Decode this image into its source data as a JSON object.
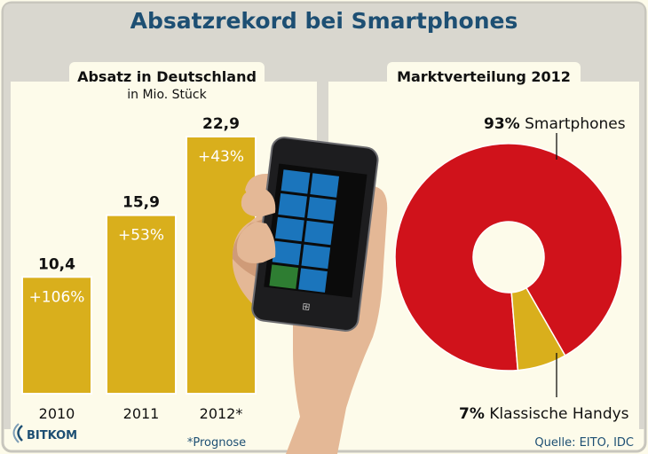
{
  "title": "Absatzrekord bei Smartphones",
  "colors": {
    "title": "#1d4f73",
    "bar": "#d9af1c",
    "bar_border": "#ffffff",
    "donut_main": "#d0121b",
    "donut_minor": "#d9af1c",
    "frame": "#c8c6bd",
    "band": "#d8d6ce",
    "panel": "#fdfbea",
    "footer": "#1d4f73"
  },
  "chart_data": [
    {
      "type": "bar",
      "title": "Absatz in Deutschland",
      "subtitle": "in Mio. Stück",
      "categories": [
        "2010",
        "2011",
        "2012*"
      ],
      "values": [
        10.4,
        15.9,
        22.9
      ],
      "value_labels": [
        "10,4",
        "15,9",
        "22,9"
      ],
      "change_labels": [
        "+106%",
        "+53%",
        "+43%"
      ],
      "xlabel": "",
      "ylabel": "",
      "ylim": [
        0,
        22.9
      ],
      "grid": false,
      "footnote": "*Prognose"
    },
    {
      "type": "pie",
      "style": "donut",
      "title": "Marktverteilung 2012",
      "slices": [
        {
          "pct_label": "93%",
          "name": "Smartphones",
          "value": 93
        },
        {
          "pct_label": "7%",
          "name": "Klassische Handys",
          "value": 7
        }
      ]
    }
  ],
  "phone": {
    "screen_tiles": [
      "phone-tile",
      "people-tile",
      "facebook-tile",
      "messaging-tile",
      "mail-tile",
      "camera-tile",
      "calendar-tile",
      "music-tile",
      "xbox-tile",
      "internet-tile"
    ]
  },
  "footer": {
    "logo": "BITKOM",
    "source": "Quelle: EITO, IDC"
  }
}
